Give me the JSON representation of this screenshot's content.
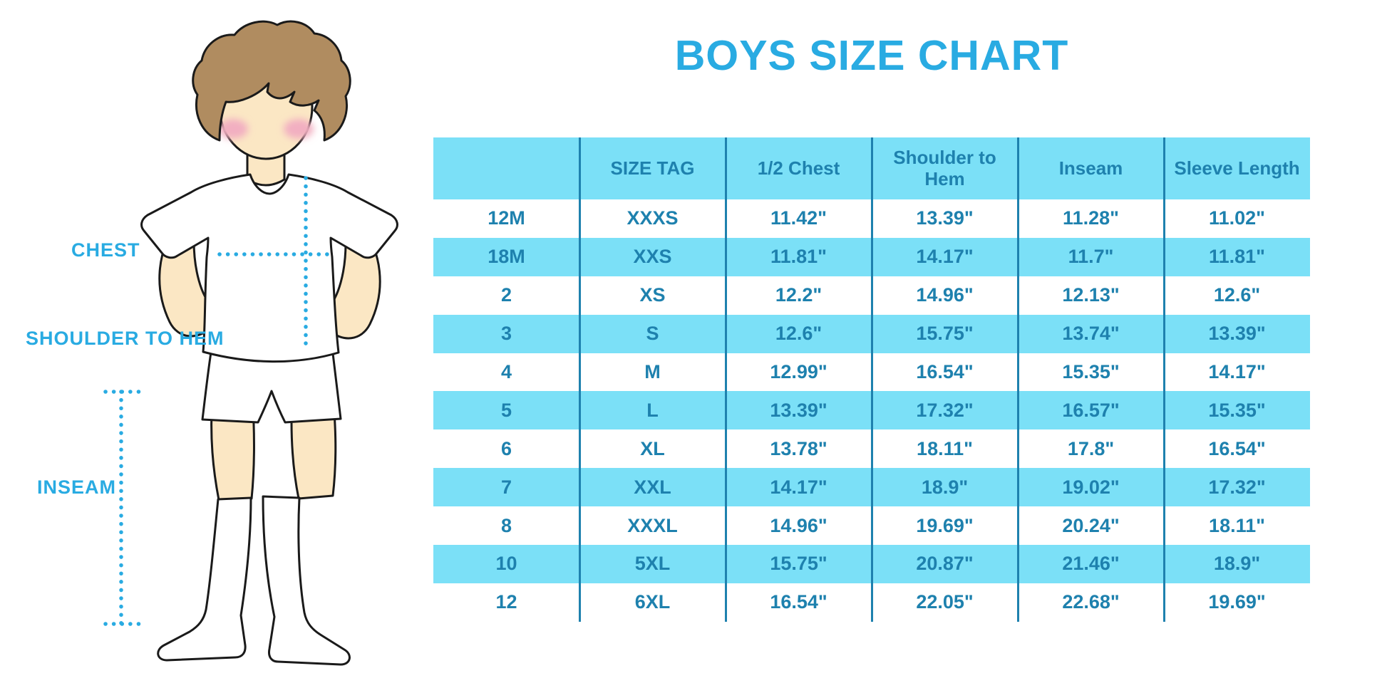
{
  "title": "BOYS SIZE CHART",
  "measurement_labels": {
    "chest": "CHEST",
    "shoulder_to_hem": "SHOULDER TO HEM",
    "inseam": "INSEAM"
  },
  "illustration": "boy-in-tshirt-shorts-and-socks-figure",
  "chart_data": {
    "type": "table",
    "columns": [
      "",
      "SIZE TAG",
      "1/2 Chest",
      "Shoulder to Hem",
      "Inseam",
      "Sleeve Length"
    ],
    "rows": [
      [
        "12M",
        "XXXS",
        "11.42\"",
        "13.39\"",
        "11.28\"",
        "11.02\""
      ],
      [
        "18M",
        "XXS",
        "11.81\"",
        "14.17\"",
        "11.7\"",
        "11.81\""
      ],
      [
        "2",
        "XS",
        "12.2\"",
        "14.96\"",
        "12.13\"",
        "12.6\""
      ],
      [
        "3",
        "S",
        "12.6\"",
        "15.75\"",
        "13.74\"",
        "13.39\""
      ],
      [
        "4",
        "M",
        "12.99\"",
        "16.54\"",
        "15.35\"",
        "14.17\""
      ],
      [
        "5",
        "L",
        "13.39\"",
        "17.32\"",
        "16.57\"",
        "15.35\""
      ],
      [
        "6",
        "XL",
        "13.78\"",
        "18.11\"",
        "17.8\"",
        "16.54\""
      ],
      [
        "7",
        "XXL",
        "14.17\"",
        "18.9\"",
        "19.02\"",
        "17.32\""
      ],
      [
        "8",
        "XXXL",
        "14.96\"",
        "19.69\"",
        "20.24\"",
        "18.11\""
      ],
      [
        "10",
        "5XL",
        "15.75\"",
        "20.87\"",
        "21.46\"",
        "18.9\""
      ],
      [
        "12",
        "6XL",
        "16.54\"",
        "22.05\"",
        "22.68\"",
        "19.69\""
      ]
    ],
    "title": "BOYS SIZE CHART",
    "row_shading": "alternating white and light blue, header light blue",
    "grid": "vertical column separators only"
  },
  "colors": {
    "accent_blue": "#29ABE2",
    "cell_fill_blue": "#7BE0F7",
    "table_text_blue": "#1E81AE",
    "skin": "#FBE7C4",
    "hair_brown": "#B08C60",
    "cheek_pink": "#F2AFC1",
    "outline": "#1a1a1a"
  }
}
